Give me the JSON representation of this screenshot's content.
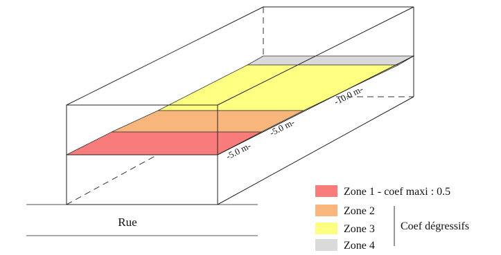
{
  "street_label": "Rue",
  "dimensions": {
    "zone1_depth": "-5.0 m-",
    "zone2_depth": "-5.0 m-",
    "zone3_depth": "-10.0 m-"
  },
  "legend": {
    "items": [
      {
        "label": "Zone 1 - coef maxi : 0.5",
        "color": "#F97C7C"
      },
      {
        "label": "Zone 2",
        "color": "#F8B57C"
      },
      {
        "label": "Zone 3",
        "color": "#FDFF80"
      },
      {
        "label": "Zone 4",
        "color": "#DADADA"
      }
    ],
    "bracket_label": "Coef dégressifs"
  }
}
